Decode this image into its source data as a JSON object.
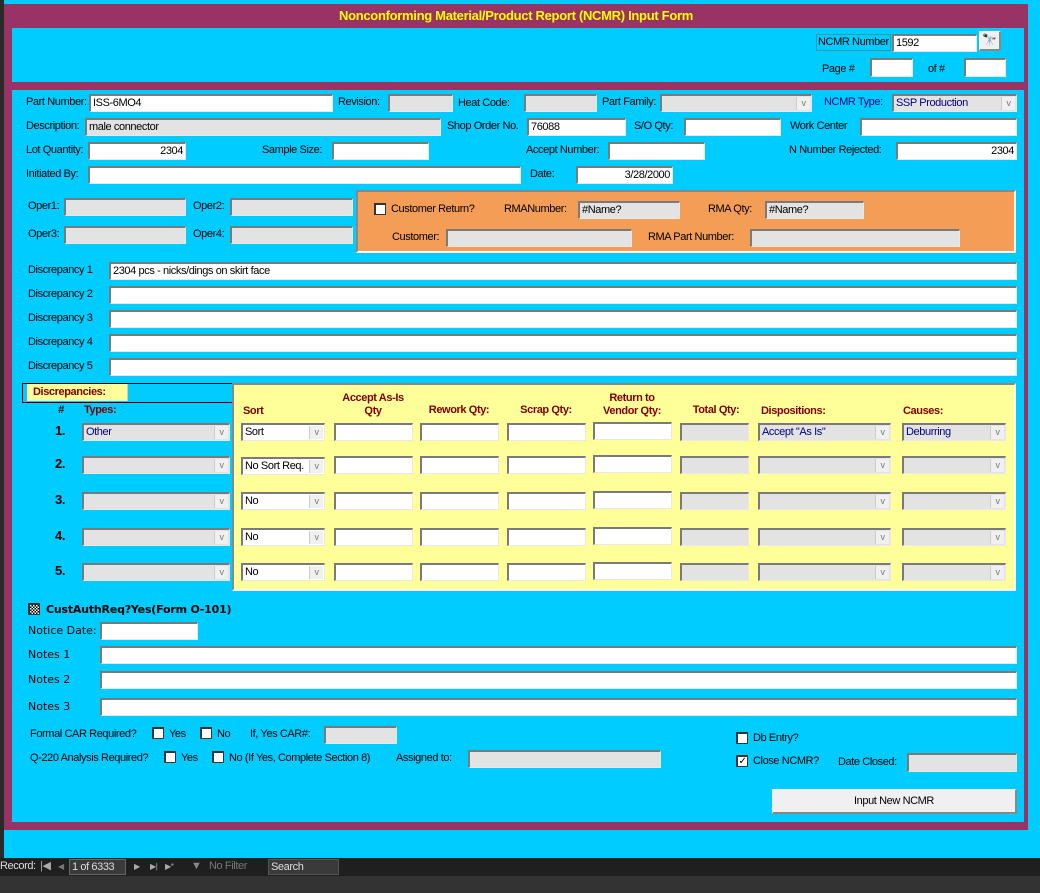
{
  "title": "Nonconforming Material/Product Report (NCMR) Input Form",
  "header": {
    "ncmr_number_label": "NCMR Number",
    "ncmr_number": "1592",
    "page_label": "Page #",
    "page": "",
    "of_label": "of #",
    "of": ""
  },
  "fields": {
    "part_number_label": "Part Number:",
    "part_number": "ISS-6MO4",
    "revision_label": "Revision:",
    "revision": "",
    "heat_code_label": "Heat Code:",
    "heat_code": "",
    "part_family_label": "Part Family:",
    "part_family": "",
    "ncmr_type_label": "NCMR Type:",
    "ncmr_type": "SSP Production",
    "description_label": "Description:",
    "description": "male connector",
    "shop_order_label": "Shop Order No.",
    "shop_order": "76088",
    "so_qty_label": "S/O Qty:",
    "so_qty": "",
    "work_center_label": "Work Center",
    "work_center": "",
    "lot_qty_label": "Lot Quantity:",
    "lot_qty": "2304",
    "sample_size_label": "Sample Size:",
    "sample_size": "",
    "accept_number_label": "Accept Number:",
    "accept_number": "",
    "n_rejected_label": "N Number Rejected:",
    "n_rejected": "2304",
    "initiated_by_label": "Initiated By:",
    "initiated_by": "",
    "date_label": "Date:",
    "date": "3/28/2000",
    "oper1_label": "Oper1:",
    "oper2_label": "Oper2:",
    "oper3_label": "Oper3:",
    "oper4_label": "Oper4:"
  },
  "customer_return": {
    "checkbox_label": "Customer Return?",
    "checked": false,
    "rma_number_label": "RMANumber:",
    "rma_number": "#Name?",
    "rma_qty_label": "RMA Qty:",
    "rma_qty": "#Name?",
    "customer_label": "Customer:",
    "customer": "",
    "rma_part_label": "RMA Part Number:",
    "rma_part": ""
  },
  "discrepancy_lines": [
    {
      "label": "Discrepancy 1",
      "value": "2304 pcs - nicks/dings on skirt face"
    },
    {
      "label": "Discrepancy 2",
      "value": ""
    },
    {
      "label": "Discrepancy 3",
      "value": ""
    },
    {
      "label": "Discrepancy 4",
      "value": ""
    },
    {
      "label": "Discrepancy 5",
      "value": ""
    }
  ],
  "discrepancies": {
    "section_label": "Discrepancies:",
    "headers": {
      "num": "#",
      "types": "Types:",
      "sort": "Sort",
      "accept1": "Accept As-Is",
      "accept2": "Qty",
      "rework": "Rework Qty:",
      "scrap": "Scrap Qty:",
      "rtv1": "Return to",
      "rtv2": "Vendor Qty:",
      "total": "Total Qty:",
      "dispositions": "Dispositions:",
      "causes": "Causes:"
    },
    "rows": [
      {
        "num": "1.",
        "type": "Other",
        "sort": "Sort",
        "disposition": "Accept \"As Is\"",
        "cause": "Deburring"
      },
      {
        "num": "2.",
        "type": "",
        "sort": "No Sort Req.",
        "disposition": "",
        "cause": ""
      },
      {
        "num": "3.",
        "type": "",
        "sort": "No",
        "disposition": "",
        "cause": ""
      },
      {
        "num": "4.",
        "type": "",
        "sort": "No",
        "disposition": "",
        "cause": ""
      },
      {
        "num": "5.",
        "type": "",
        "sort": "No",
        "disposition": "",
        "cause": ""
      }
    ]
  },
  "cust_auth": {
    "label": "CustAuthReq?Yes(Form O-101)",
    "state": "indeterminate"
  },
  "notice_date_label": "Notice Date:",
  "notice_date": "",
  "notes": [
    {
      "label": "Notes 1",
      "value": ""
    },
    {
      "label": "Notes 2",
      "value": ""
    },
    {
      "label": "Notes 3",
      "value": ""
    }
  ],
  "car": {
    "label": "Formal CAR Required?",
    "yes": "Yes",
    "no": "No",
    "car_num_label": "If, Yes CAR#:",
    "car_num": ""
  },
  "q220": {
    "label": "Q-220 Analysis Required?",
    "yes": "Yes",
    "no": "No  (If Yes, Complete Section 8)",
    "assigned_label": "Assigned to:",
    "assigned": ""
  },
  "db_entry": {
    "label": "Db Entry?",
    "checked": false
  },
  "close_ncmr": {
    "label": "Close NCMR?",
    "checked": true,
    "date_closed_label": "Date Closed:",
    "date_closed": ""
  },
  "input_new_button": "Input New NCMR",
  "navbar": {
    "record_label": "Record:",
    "position": "1 of 6333",
    "no_filter": "No Filter",
    "search": "Search"
  },
  "colors": {
    "frame": "#993366",
    "background": "#00CCFF",
    "title": "#FFFF00",
    "orange_panel": "#F49D57",
    "yellow_panel": "#FFFF99",
    "header_text": "#800000"
  }
}
